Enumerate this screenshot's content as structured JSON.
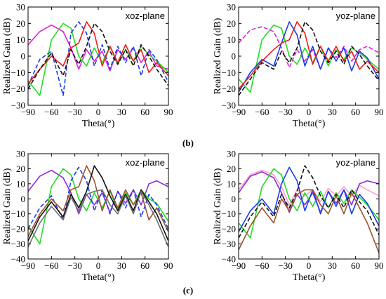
{
  "captions": [
    "(b)",
    "(c)"
  ],
  "colors": {
    "magenta": "#e020e0",
    "green": "#22dd22",
    "blue": "#1a3cf0",
    "red": "#ee1c1c",
    "black": "#111111",
    "purple": "#8a2be2",
    "brown": "#a0522d",
    "gray": "#707070",
    "pink": "#ff9ec8"
  },
  "chart_data": [
    {
      "type": "line",
      "plane_label": "xoz-plane",
      "xlabel": "Theta(°)",
      "ylabel": "Realized Gain (dB)",
      "xlim": [
        -90,
        90
      ],
      "ylim": [
        -30,
        30
      ],
      "xticks": [
        "−90",
        "−60",
        "−30",
        "0",
        "30",
        "60",
        "90"
      ],
      "yticks": [
        "30",
        "20",
        "10",
        "0",
        "−10",
        "−20",
        "−30"
      ],
      "series": [
        {
          "color": "magenta",
          "dash": false,
          "x": [
            -90,
            -75,
            -60,
            -45,
            -35,
            -25,
            -15,
            -5,
            5,
            15,
            25,
            35,
            45,
            55,
            65,
            75,
            90
          ],
          "y": [
            7,
            15,
            19,
            15,
            5,
            -8,
            4,
            -3,
            3,
            -9,
            4,
            -2,
            5,
            -4,
            3,
            -6,
            -8
          ]
        },
        {
          "color": "green",
          "dash": false,
          "x": [
            -90,
            -75,
            -60,
            -45,
            -35,
            -25,
            -15,
            -5,
            5,
            15,
            25,
            35,
            45,
            55,
            65,
            75,
            90
          ],
          "y": [
            -15,
            -24,
            10,
            20,
            17,
            0,
            -6,
            5,
            -4,
            6,
            -5,
            4,
            -3,
            6,
            1,
            -3,
            -10
          ]
        },
        {
          "color": "blue",
          "dash": true,
          "x": [
            -90,
            -75,
            -60,
            -45,
            -35,
            -25,
            -15,
            -5,
            5,
            15,
            25,
            35,
            45,
            55,
            65,
            75,
            90
          ],
          "y": [
            -18,
            -2,
            3,
            -24,
            14,
            21,
            14,
            -6,
            7,
            -8,
            6,
            -4,
            6,
            -12,
            4,
            -2,
            -16
          ]
        },
        {
          "color": "red",
          "dash": false,
          "x": [
            -90,
            -75,
            -60,
            -45,
            -35,
            -25,
            -15,
            -5,
            5,
            15,
            25,
            35,
            45,
            55,
            65,
            75,
            90
          ],
          "y": [
            -17,
            -8,
            0,
            -6,
            5,
            8,
            21,
            14,
            -6,
            6,
            -4,
            7,
            -3,
            4,
            -10,
            -4,
            -12
          ]
        },
        {
          "color": "black",
          "dash": true,
          "x": [
            -90,
            -75,
            -60,
            -45,
            -35,
            -25,
            -15,
            -5,
            5,
            15,
            25,
            35,
            45,
            55,
            65,
            75,
            90
          ],
          "y": [
            -20,
            -8,
            2,
            -12,
            4,
            -5,
            6,
            20,
            15,
            3,
            -5,
            4,
            -6,
            7,
            0,
            -8,
            -18
          ]
        }
      ]
    },
    {
      "type": "line",
      "plane_label": "yoz-plane",
      "xlabel": "Theta(°)",
      "ylabel": "Realized Gain (dB)",
      "xlim": [
        -90,
        90
      ],
      "ylim": [
        -30,
        30
      ],
      "xticks": [
        "−90",
        "−60",
        "−30",
        "0",
        "30",
        "60",
        "90"
      ],
      "yticks": [
        "30",
        "20",
        "10",
        "0",
        "−10",
        "−20",
        "−30"
      ],
      "series": [
        {
          "color": "magenta",
          "dash": true,
          "x": [
            -90,
            -75,
            -60,
            -45,
            -35,
            -25,
            -15,
            -5,
            5,
            15,
            25,
            35,
            45,
            55,
            65,
            75,
            90
          ],
          "y": [
            8,
            16,
            18,
            15,
            5,
            -7,
            4,
            -3,
            4,
            -8,
            5,
            -1,
            6,
            -3,
            4,
            6,
            2
          ]
        },
        {
          "color": "green",
          "dash": false,
          "x": [
            -90,
            -75,
            -60,
            -45,
            -35,
            -25,
            -15,
            -5,
            5,
            15,
            25,
            35,
            45,
            55,
            65,
            75,
            90
          ],
          "y": [
            -14,
            -22,
            10,
            19,
            17,
            0,
            -5,
            5,
            -4,
            6,
            -6,
            4,
            -2,
            5,
            2,
            -2,
            -8
          ]
        },
        {
          "color": "blue",
          "dash": false,
          "x": [
            -90,
            -75,
            -60,
            -45,
            -35,
            -25,
            -15,
            -5,
            5,
            15,
            25,
            35,
            45,
            55,
            65,
            75,
            90
          ],
          "y": [
            -22,
            -10,
            -2,
            -6,
            8,
            21,
            13,
            -6,
            6,
            -8,
            5,
            -3,
            5,
            -9,
            3,
            -1,
            -14
          ]
        },
        {
          "color": "red",
          "dash": false,
          "x": [
            -90,
            -75,
            -60,
            -45,
            -35,
            -25,
            -15,
            -5,
            5,
            15,
            25,
            35,
            45,
            55,
            65,
            75,
            90
          ],
          "y": [
            -20,
            -12,
            -3,
            4,
            8,
            10,
            21,
            14,
            -5,
            6,
            -3,
            6,
            -3,
            3,
            -8,
            -3,
            -10
          ]
        },
        {
          "color": "black",
          "dash": true,
          "x": [
            -90,
            -75,
            -60,
            -45,
            -35,
            -25,
            -15,
            -5,
            5,
            15,
            25,
            35,
            45,
            55,
            65,
            75,
            90
          ],
          "y": [
            -24,
            -14,
            -4,
            -8,
            3,
            -4,
            5,
            21,
            16,
            3,
            -4,
            3,
            -5,
            6,
            1,
            -6,
            -15
          ]
        }
      ]
    },
    {
      "type": "line",
      "plane_label": "xoz-plane",
      "xlabel": "Theta(°)",
      "ylabel": "Realized Gain (dB)",
      "xlim": [
        -90,
        90
      ],
      "ylim": [
        -40,
        30
      ],
      "xticks": [
        "−90",
        "−60",
        "−30",
        "0",
        "30",
        "60",
        "90"
      ],
      "yticks": [
        "30",
        "20",
        "10",
        "0",
        "−10",
        "−20",
        "−30",
        "−40"
      ],
      "series": [
        {
          "color": "purple",
          "dash": false,
          "x": [
            -90,
            -75,
            -60,
            -45,
            -35,
            -25,
            -15,
            -5,
            5,
            15,
            25,
            35,
            45,
            55,
            65,
            75,
            90
          ],
          "y": [
            5,
            15,
            19,
            14,
            4,
            -10,
            3,
            -4,
            4,
            -9,
            5,
            -3,
            6,
            -4,
            10,
            12,
            8
          ]
        },
        {
          "color": "green",
          "dash": false,
          "x": [
            -90,
            -75,
            -60,
            -45,
            -35,
            -25,
            -15,
            -5,
            5,
            15,
            25,
            35,
            45,
            55,
            65,
            75,
            90
          ],
          "y": [
            -18,
            -30,
            8,
            20,
            16,
            0,
            -8,
            4,
            -6,
            5,
            -7,
            4,
            -4,
            6,
            0,
            -3,
            -15
          ]
        },
        {
          "color": "blue",
          "dash": true,
          "x": [
            -90,
            -75,
            -60,
            -45,
            -35,
            -25,
            -15,
            -5,
            5,
            15,
            25,
            35,
            45,
            55,
            65,
            75,
            90
          ],
          "y": [
            -20,
            -6,
            2,
            -14,
            12,
            21,
            12,
            -8,
            6,
            -10,
            5,
            -6,
            6,
            -12,
            3,
            -4,
            -20
          ]
        },
        {
          "color": "brown",
          "dash": false,
          "x": [
            -90,
            -75,
            -60,
            -45,
            -35,
            -25,
            -15,
            -5,
            5,
            15,
            25,
            35,
            45,
            55,
            65,
            75,
            90
          ],
          "y": [
            -25,
            -10,
            0,
            -8,
            6,
            8,
            22,
            12,
            -8,
            6,
            -6,
            6,
            -4,
            4,
            -14,
            -6,
            -22
          ]
        },
        {
          "color": "black",
          "dash": false,
          "x": [
            -90,
            -75,
            -60,
            -45,
            -35,
            -25,
            -15,
            -5,
            5,
            15,
            25,
            35,
            45,
            55,
            65,
            75,
            90
          ],
          "y": [
            -28,
            -12,
            -2,
            -12,
            3,
            -6,
            5,
            22,
            14,
            2,
            -8,
            3,
            -8,
            6,
            -2,
            -10,
            -28
          ]
        },
        {
          "color": "gray",
          "dash": false,
          "x": [
            -90,
            -75,
            -60,
            -45,
            -35,
            -25,
            -15,
            -5,
            5,
            15,
            25,
            35,
            45,
            55,
            65,
            75,
            90
          ],
          "y": [
            -32,
            -16,
            -5,
            -14,
            1,
            -8,
            3,
            5,
            6,
            -4,
            -10,
            2,
            -10,
            5,
            -4,
            -14,
            -32
          ]
        }
      ]
    },
    {
      "type": "line",
      "plane_label": "yoz-plane",
      "xlabel": "Theta(°)",
      "ylabel": "Realized Gain (dB)",
      "xlim": [
        -90,
        90
      ],
      "ylim": [
        -40,
        30
      ],
      "xticks": [
        "−90",
        "−60",
        "−30",
        "0",
        "30",
        "60",
        "90"
      ],
      "yticks": [
        "30",
        "20",
        "10",
        "0",
        "−10",
        "−20",
        "−30",
        "−40"
      ],
      "series": [
        {
          "color": "pink",
          "dash": false,
          "x": [
            -90,
            -75,
            -60,
            -45,
            -35,
            -25,
            -15,
            -5,
            5,
            15,
            25,
            35,
            45,
            55,
            65,
            75,
            90
          ],
          "y": [
            6,
            16,
            19,
            16,
            8,
            -4,
            6,
            2,
            6,
            -2,
            7,
            2,
            8,
            2,
            9,
            6,
            2
          ]
        },
        {
          "color": "purple",
          "dash": false,
          "x": [
            -90,
            -75,
            -60,
            -45,
            -35,
            -25,
            -15,
            -5,
            5,
            15,
            25,
            35,
            45,
            55,
            65,
            75,
            90
          ],
          "y": [
            4,
            15,
            18,
            14,
            4,
            -9,
            3,
            -4,
            4,
            -9,
            5,
            -3,
            6,
            -4,
            10,
            12,
            10
          ]
        },
        {
          "color": "green",
          "dash": false,
          "x": [
            -90,
            -75,
            -60,
            -45,
            -35,
            -25,
            -15,
            -5,
            5,
            15,
            25,
            35,
            45,
            55,
            65,
            75,
            90
          ],
          "y": [
            -16,
            -26,
            8,
            20,
            16,
            0,
            -8,
            4,
            -5,
            5,
            -6,
            4,
            -3,
            6,
            1,
            -4,
            -14
          ]
        },
        {
          "color": "blue",
          "dash": false,
          "x": [
            -90,
            -75,
            -60,
            -45,
            -35,
            -25,
            -15,
            -5,
            5,
            15,
            25,
            35,
            45,
            55,
            65,
            75,
            90
          ],
          "y": [
            -22,
            -8,
            0,
            -10,
            10,
            21,
            12,
            -8,
            6,
            -10,
            5,
            -5,
            6,
            -10,
            3,
            -3,
            -18
          ]
        },
        {
          "color": "black",
          "dash": true,
          "x": [
            -90,
            -75,
            -60,
            -45,
            -35,
            -25,
            -15,
            -5,
            5,
            15,
            25,
            35,
            45,
            55,
            65,
            75,
            90
          ],
          "y": [
            -26,
            -12,
            -2,
            -12,
            3,
            -6,
            5,
            22,
            14,
            2,
            -6,
            3,
            -6,
            6,
            -2,
            -8,
            -24
          ]
        },
        {
          "color": "brown",
          "dash": false,
          "x": [
            -90,
            -75,
            -60,
            -45,
            -35,
            -25,
            -15,
            -5,
            5,
            15,
            25,
            35,
            45,
            55,
            65,
            75,
            90
          ],
          "y": [
            -34,
            -18,
            -6,
            -16,
            0,
            -8,
            3,
            6,
            6,
            -4,
            -10,
            2,
            -10,
            4,
            -6,
            -16,
            -36
          ]
        }
      ]
    }
  ]
}
